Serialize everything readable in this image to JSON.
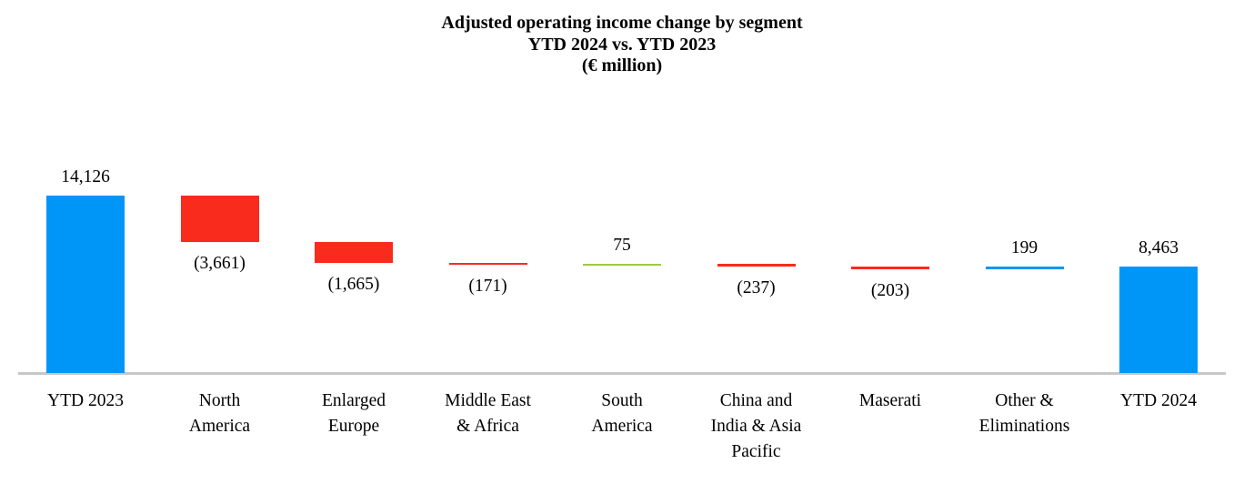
{
  "chart_data": {
    "type": "bar",
    "subtype": "waterfall",
    "title": "Adjusted operating income change by segment",
    "subtitle": "YTD 2024 vs. YTD 2023",
    "units_label": "(€ million)",
    "categories": [
      "YTD 2023",
      "North\nAmerica",
      "Enlarged\nEurope",
      "Middle East\n& Africa",
      "South\nAmerica",
      "China and\nIndia & Asia\nPacific",
      "Maserati",
      "Other &\nEliminations",
      "YTD 2024"
    ],
    "category_ids": [
      "ytd-2023",
      "north-america",
      "enlarged-europe",
      "middle-east-africa",
      "south-america",
      "china-india-asia-pacific",
      "maserati",
      "other-eliminations",
      "ytd-2024"
    ],
    "values": [
      14126,
      -3661,
      -1665,
      -171,
      75,
      -237,
      -203,
      199,
      8463
    ],
    "value_labels": [
      "14,126",
      "(3,661)",
      "(1,665)",
      "(171)",
      "75",
      "(237)",
      "(203)",
      "199",
      "8,463"
    ],
    "bar_kinds": [
      "total",
      "decrease",
      "decrease",
      "decrease",
      "increase",
      "decrease",
      "decrease",
      "increase",
      "total"
    ],
    "label_positions": [
      "above",
      "below",
      "below",
      "below",
      "above",
      "below",
      "below",
      "above",
      "above"
    ],
    "bar_colors": [
      "#0096F8",
      "#F92B1C",
      "#F92B1C",
      "#F92B1C",
      "#9CCB40",
      "#F92B1C",
      "#F92B1C",
      "#0096F8",
      "#0096F8"
    ],
    "colors": {
      "total_bar": "#0096F8",
      "decrease_bar": "#F92B1C",
      "increase_bar_green": "#9CCB40",
      "increase_bar_blue": "#0096F8",
      "axis_line": "#C7C7C7",
      "text": "#000000",
      "background": "#FFFFFF"
    },
    "ylim": [
      0,
      14600
    ],
    "grid": false,
    "legend": false
  }
}
